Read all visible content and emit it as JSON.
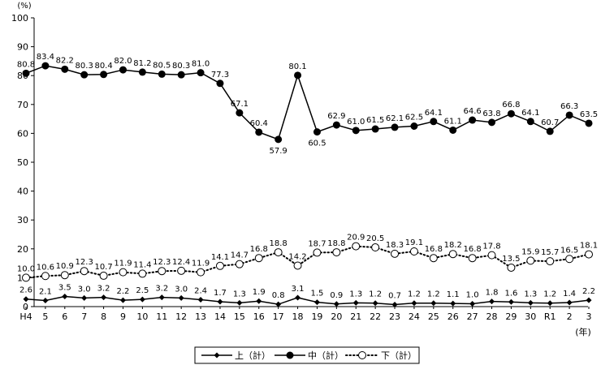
{
  "chart_data": {
    "type": "line",
    "y_unit": "(%)",
    "x_unit": "(年)",
    "ylim": [
      0,
      100
    ],
    "yticks": [
      0,
      10,
      20,
      30,
      40,
      50,
      60,
      70,
      80,
      90,
      100
    ],
    "grid": false,
    "legend_position": "bottom-center",
    "categories": [
      "H4",
      "5",
      "6",
      "7",
      "8",
      "9",
      "10",
      "11",
      "12",
      "13",
      "14",
      "15",
      "16",
      "17",
      "18",
      "19",
      "20",
      "21",
      "22",
      "23",
      "24",
      "25",
      "26",
      "27",
      "28",
      "29",
      "30",
      "R1",
      "2",
      "3"
    ],
    "series": [
      {
        "name": "上（計）",
        "marker": "diamond-filled",
        "line": "solid",
        "values": [
          2.6,
          2.1,
          3.5,
          3.0,
          3.2,
          2.2,
          2.5,
          3.2,
          3.0,
          2.4,
          1.7,
          1.3,
          1.9,
          0.8,
          3.1,
          1.5,
          0.9,
          1.3,
          1.2,
          0.7,
          1.2,
          1.2,
          1.1,
          1.0,
          1.8,
          1.6,
          1.3,
          1.2,
          1.4,
          2.2
        ]
      },
      {
        "name": "中（計）",
        "marker": "circle-filled",
        "line": "solid",
        "values": [
          80.8,
          83.4,
          82.2,
          80.3,
          80.4,
          82.0,
          81.2,
          80.5,
          80.3,
          81.0,
          77.3,
          67.1,
          60.4,
          57.9,
          80.1,
          60.5,
          62.9,
          61.0,
          61.5,
          62.1,
          62.5,
          64.1,
          61.1,
          64.6,
          63.8,
          66.8,
          64.1,
          60.7,
          66.3,
          63.5
        ]
      },
      {
        "name": "下（計）",
        "marker": "circle-open",
        "line": "dotted",
        "values": [
          10.0,
          10.6,
          10.9,
          12.3,
          10.7,
          11.9,
          11.4,
          12.3,
          12.4,
          11.9,
          14.1,
          14.7,
          16.8,
          18.8,
          14.2,
          18.7,
          18.8,
          20.9,
          20.5,
          18.3,
          19.1,
          16.8,
          18.2,
          16.8,
          17.8,
          13.5,
          15.9,
          15.7,
          16.5,
          18.1
        ]
      }
    ]
  }
}
